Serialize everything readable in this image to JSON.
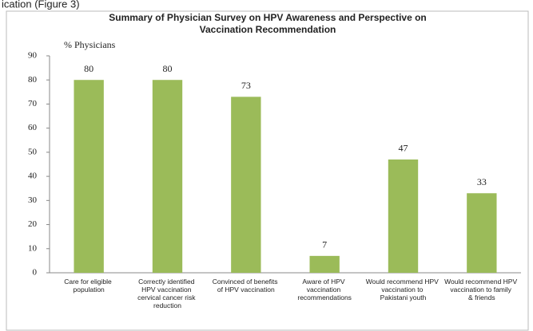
{
  "caption": "ication (Figure 3)",
  "chart_data": {
    "type": "bar",
    "title": [
      "Summary of Physician Survey on HPV Awareness and Perspective on",
      "Vaccination Recommendation"
    ],
    "y_label": "% Physicians",
    "categories": [
      "Care for eligible population",
      "Correctly identified HPV vaccination cervical cancer risk reduction",
      "Convinced of benefits of HPV vaccination",
      "Aware of HPV vaccination recommendations",
      "Would recommend HPV vaccination to Pakistani youth",
      "Would recommend HPV vaccination to family & friends"
    ],
    "values": [
      80,
      80,
      73,
      7,
      47,
      33
    ],
    "color": "#9bbb59",
    "ylim": [
      0,
      90
    ],
    "yticks": [
      0,
      10,
      20,
      30,
      40,
      50,
      60,
      70,
      80,
      90
    ],
    "grid": false
  }
}
